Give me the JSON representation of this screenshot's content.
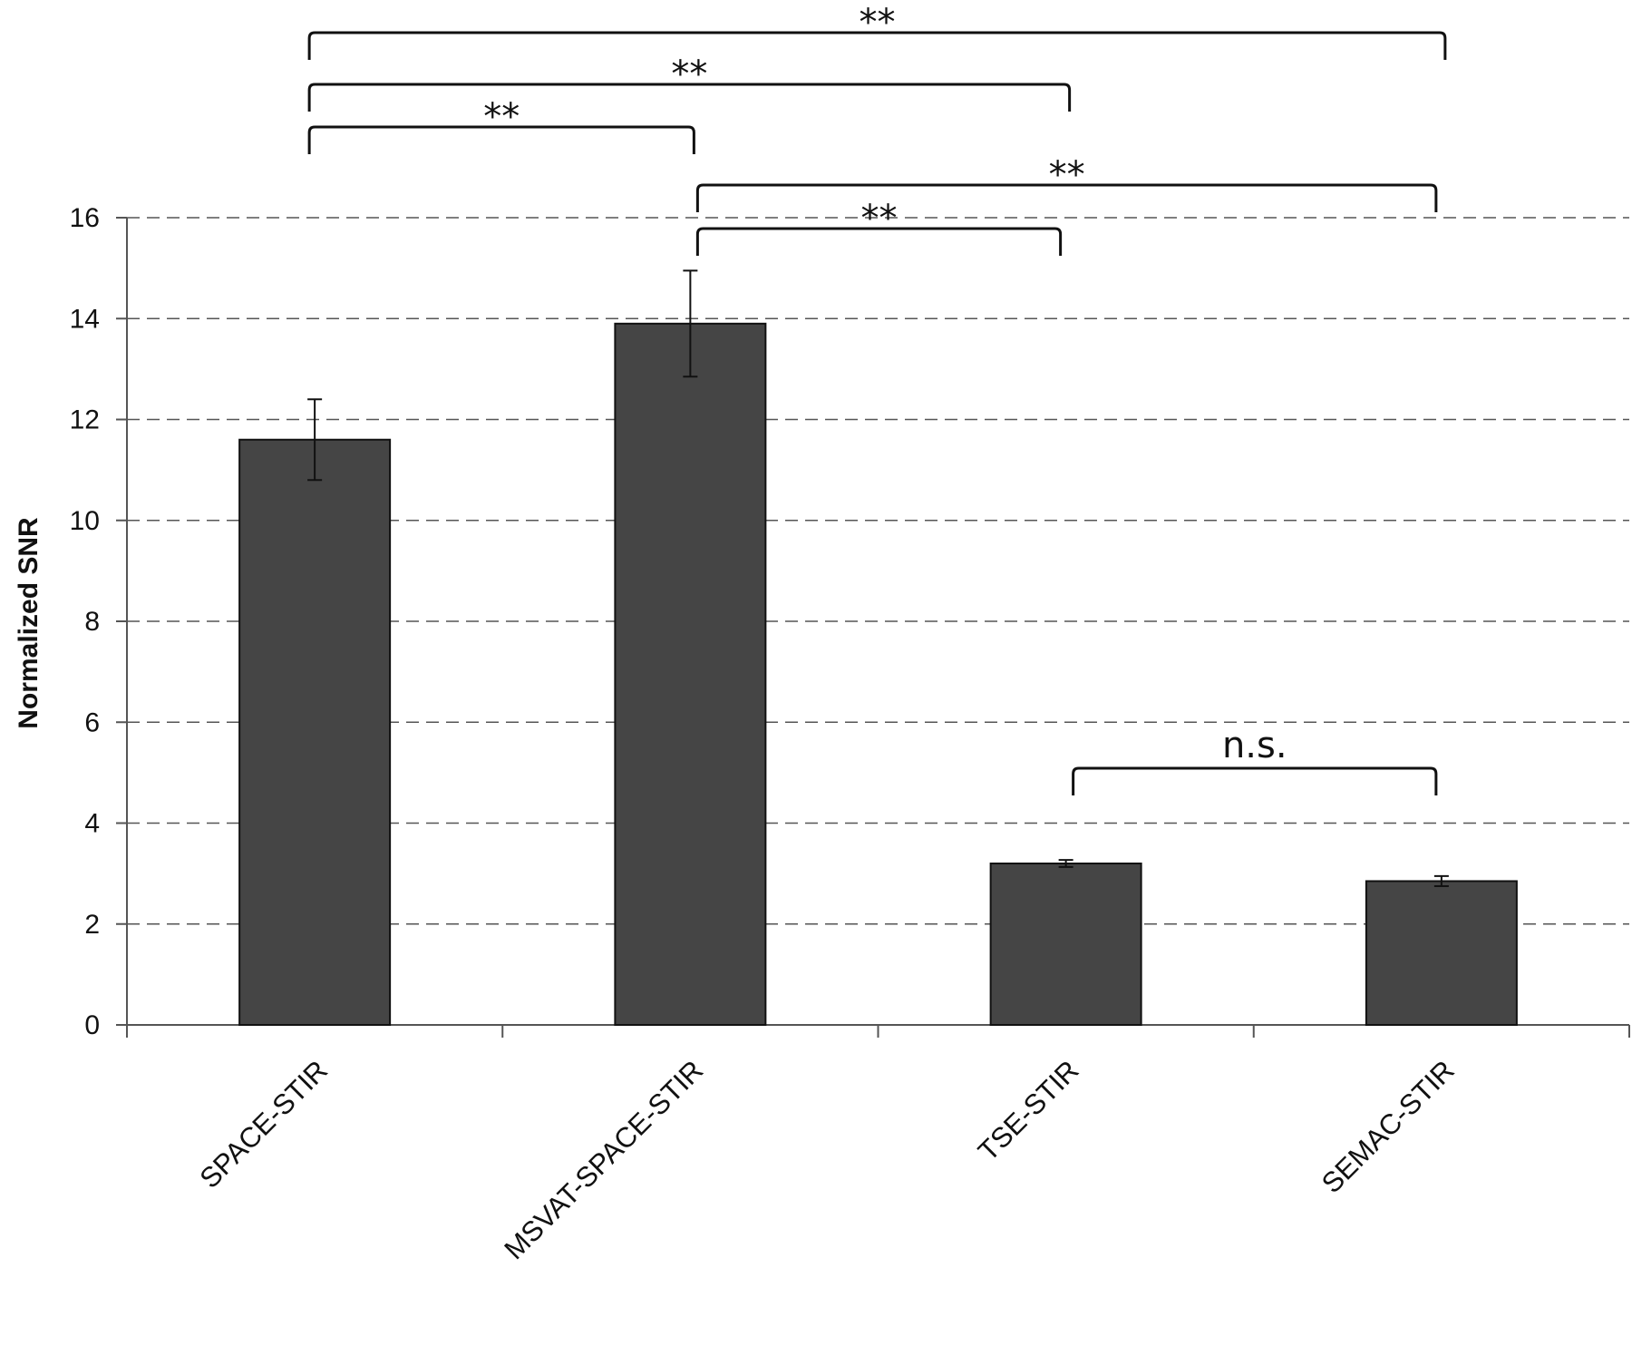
{
  "chart_data": {
    "type": "bar",
    "title": "",
    "xlabel": "",
    "ylabel": "Normalized  SNR",
    "ylim": [
      0,
      16
    ],
    "yticks": [
      0,
      2,
      4,
      6,
      8,
      10,
      12,
      14,
      16
    ],
    "grid": true,
    "categories": [
      "SPACE-STIR",
      "MSVAT-SPACE-STIR",
      "TSE-STIR",
      "SEMAC-STIR"
    ],
    "values": [
      11.6,
      13.9,
      3.2,
      2.85
    ],
    "errors": [
      0.8,
      1.05,
      0.07,
      0.1
    ],
    "bar_color": "#454545",
    "significance": [
      {
        "from": 0,
        "to": 1,
        "label": "**"
      },
      {
        "from": 0,
        "to": 2,
        "label": "**"
      },
      {
        "from": 0,
        "to": 3,
        "label": "**"
      },
      {
        "from": 1,
        "to": 2,
        "label": "**"
      },
      {
        "from": 1,
        "to": 3,
        "label": "**"
      },
      {
        "from": 2,
        "to": 3,
        "label": "n.s."
      }
    ]
  }
}
